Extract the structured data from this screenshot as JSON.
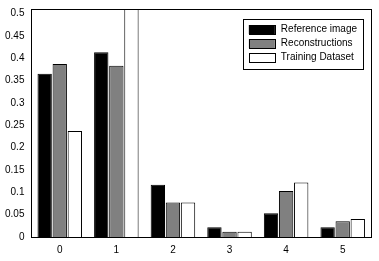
{
  "chart_data": {
    "type": "bar",
    "categories": [
      "0",
      "1",
      "2",
      "3",
      "4",
      "5"
    ],
    "series": [
      {
        "name": "Reference image",
        "color": "#000000",
        "values": [
          0.365,
          0.413,
          0.117,
          0.022,
          0.053,
          0.022
        ]
      },
      {
        "name": "Reconstructions",
        "color": "#808080",
        "values": [
          0.387,
          0.383,
          0.077,
          0.012,
          0.103,
          0.035
        ]
      },
      {
        "name": "Training Dataset",
        "color": "#ffffff",
        "values": [
          0.237,
          0.51,
          0.077,
          0.012,
          0.122,
          0.04
        ]
      }
    ],
    "ylim": [
      0,
      0.51
    ],
    "yticks": [
      0,
      0.05,
      0.1,
      0.15,
      0.2,
      0.25,
      0.3,
      0.35,
      0.4,
      0.45,
      0.5
    ],
    "grid": false,
    "legend": "upper right"
  }
}
